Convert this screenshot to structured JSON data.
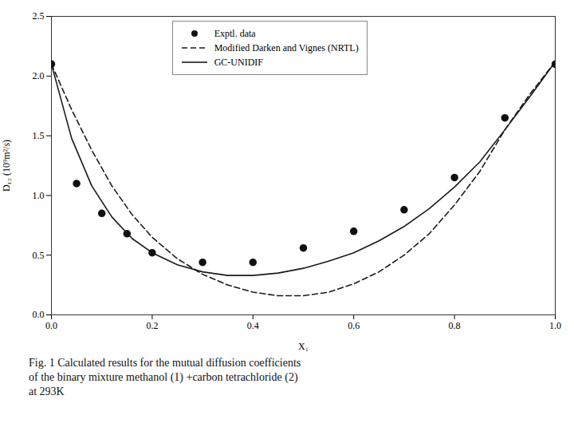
{
  "chart_data": {
    "type": "line",
    "xlabel": "X₁",
    "ylabel": "D₁₂ (10⁹m²/s)",
    "caption": "Fig. 1 Calculated results for the mutual diffusion coefficients\nof the binary mixture methanol (1) +carbon tetrachloride (2)\nat 293K",
    "xlim": [
      0.0,
      1.0
    ],
    "ylim": [
      0.0,
      2.5
    ],
    "xticks": [
      {
        "value": 0.0,
        "label": "0.0"
      },
      0.2,
      0.4,
      0.6,
      0.8,
      {
        "value": 1.0,
        "label": "1.0"
      }
    ],
    "yticks": [
      {
        "value": 0.0,
        "label": "0.0"
      },
      0.5,
      {
        "value": 1.0,
        "label": "1.0"
      },
      1.5,
      {
        "value": 2.0,
        "label": "2.0"
      },
      2.5
    ],
    "legend": "upper center",
    "series": [
      {
        "name": "Exptl. data",
        "type": "scatter",
        "marker": "o",
        "color": "#111111",
        "x": [
          0.0,
          0.05,
          0.1,
          0.15,
          0.2,
          0.3,
          0.4,
          0.5,
          0.6,
          0.7,
          0.8,
          0.9,
          1.0
        ],
        "values": [
          2.1,
          1.1,
          0.85,
          0.68,
          0.52,
          0.44,
          0.44,
          0.56,
          0.7,
          0.88,
          1.15,
          1.65,
          2.1
        ]
      },
      {
        "name": "Modified Darken and Vignes (NRTL)",
        "type": "line",
        "line_style": "dashed",
        "color": "#1a1a1a",
        "x": [
          0.0,
          0.04,
          0.08,
          0.12,
          0.16,
          0.2,
          0.25,
          0.3,
          0.35,
          0.4,
          0.45,
          0.5,
          0.55,
          0.6,
          0.65,
          0.7,
          0.75,
          0.8,
          0.85,
          0.9,
          0.95,
          1.0
        ],
        "values": [
          2.1,
          1.72,
          1.38,
          1.08,
          0.84,
          0.65,
          0.47,
          0.34,
          0.25,
          0.19,
          0.16,
          0.16,
          0.19,
          0.26,
          0.36,
          0.5,
          0.68,
          0.92,
          1.2,
          1.55,
          1.85,
          2.12
        ]
      },
      {
        "name": "GC-UNIDIF",
        "type": "line",
        "line_style": "solid",
        "color": "#1a1a1a",
        "x": [
          0.0,
          0.04,
          0.08,
          0.12,
          0.16,
          0.2,
          0.25,
          0.3,
          0.35,
          0.4,
          0.45,
          0.5,
          0.55,
          0.6,
          0.65,
          0.7,
          0.75,
          0.8,
          0.85,
          0.9,
          0.95,
          1.0
        ],
        "values": [
          2.1,
          1.48,
          1.08,
          0.82,
          0.64,
          0.52,
          0.42,
          0.36,
          0.33,
          0.33,
          0.35,
          0.39,
          0.45,
          0.52,
          0.62,
          0.74,
          0.89,
          1.07,
          1.28,
          1.55,
          1.83,
          2.12
        ]
      }
    ]
  }
}
